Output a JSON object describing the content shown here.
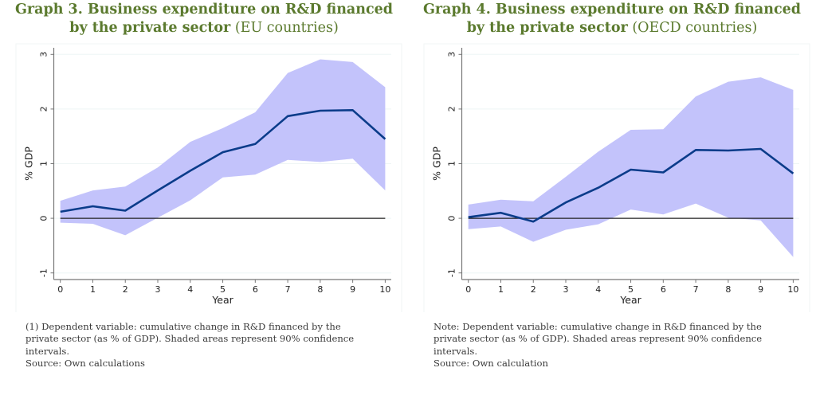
{
  "colors": {
    "title": "#5b7a2e",
    "line": "#0b3c8a",
    "band": "#c3c3fb",
    "zero_line": "#222222",
    "axis": "#777777",
    "grid": "#eef5f5"
  },
  "chart_data": [
    {
      "type": "area",
      "title_bold": "Graph 3. Business expenditure on R&D financed",
      "title_bold_line2": "by the private sector",
      "title_regular": " (EU countries)",
      "xlabel": "Year",
      "ylabel": "% GDP",
      "x": [
        0,
        1,
        2,
        3,
        4,
        5,
        6,
        7,
        8,
        9,
        10
      ],
      "xticks": [
        "0",
        "1",
        "2",
        "3",
        "4",
        "5",
        "6",
        "7",
        "8",
        "9",
        "10"
      ],
      "yticks": [
        "-1",
        "0",
        "1",
        "2",
        "3"
      ],
      "ylim": [
        -1,
        3
      ],
      "xlim": [
        0,
        10
      ],
      "grid": true,
      "series": [
        {
          "name": "estimate",
          "kind": "line",
          "values": [
            0.12,
            0.22,
            0.14,
            0.51,
            0.87,
            1.21,
            1.36,
            1.87,
            1.97,
            1.98,
            1.45
          ]
        },
        {
          "name": "upper 90% CI",
          "kind": "band-upper",
          "values": [
            0.32,
            0.51,
            0.58,
            0.93,
            1.4,
            1.65,
            1.94,
            2.66,
            2.91,
            2.86,
            2.4
          ]
        },
        {
          "name": "lower 90% CI",
          "kind": "band-lower",
          "values": [
            -0.08,
            -0.1,
            -0.31,
            0.01,
            0.33,
            0.75,
            0.8,
            1.07,
            1.03,
            1.09,
            0.51
          ]
        }
      ],
      "reference_line": 0,
      "note_lines": [
        "(1) Dependent variable: cumulative change in R&D financed by the",
        "private sector (as % of GDP). Shaded areas represent 90% confidence",
        "intervals.",
        "Source: Own calculations"
      ]
    },
    {
      "type": "area",
      "title_bold": "Graph 4. Business expenditure on R&D financed",
      "title_bold_line2": "by the private sector",
      "title_regular": " (OECD countries)",
      "xlabel": "Year",
      "ylabel": "% GDP",
      "x": [
        0,
        1,
        2,
        3,
        4,
        5,
        6,
        7,
        8,
        9,
        10
      ],
      "xticks": [
        "0",
        "1",
        "2",
        "3",
        "4",
        "5",
        "6",
        "7",
        "8",
        "9",
        "10"
      ],
      "yticks": [
        "-1",
        "0",
        "1",
        "2",
        "3"
      ],
      "ylim": [
        -1,
        3
      ],
      "xlim": [
        0,
        10
      ],
      "grid": true,
      "series": [
        {
          "name": "estimate",
          "kind": "line",
          "values": [
            0.02,
            0.1,
            -0.06,
            0.29,
            0.56,
            0.89,
            0.84,
            1.25,
            1.24,
            1.27,
            0.82
          ]
        },
        {
          "name": "upper 90% CI",
          "kind": "band-upper",
          "values": [
            0.25,
            0.34,
            0.31,
            0.76,
            1.22,
            1.62,
            1.63,
            2.23,
            2.5,
            2.58,
            2.35
          ]
        },
        {
          "name": "lower 90% CI",
          "kind": "band-lower",
          "values": [
            -0.2,
            -0.15,
            -0.43,
            -0.21,
            -0.11,
            0.16,
            0.07,
            0.27,
            0.01,
            -0.04,
            -0.71
          ]
        }
      ],
      "reference_line": 0,
      "note_lines": [
        "Note: Dependent variable: cumulative change in R&D financed by the",
        "private sector (as % of GDP). Shaded areas represent 90% confidence",
        "intervals.",
        "Source: Own calculation"
      ]
    }
  ]
}
